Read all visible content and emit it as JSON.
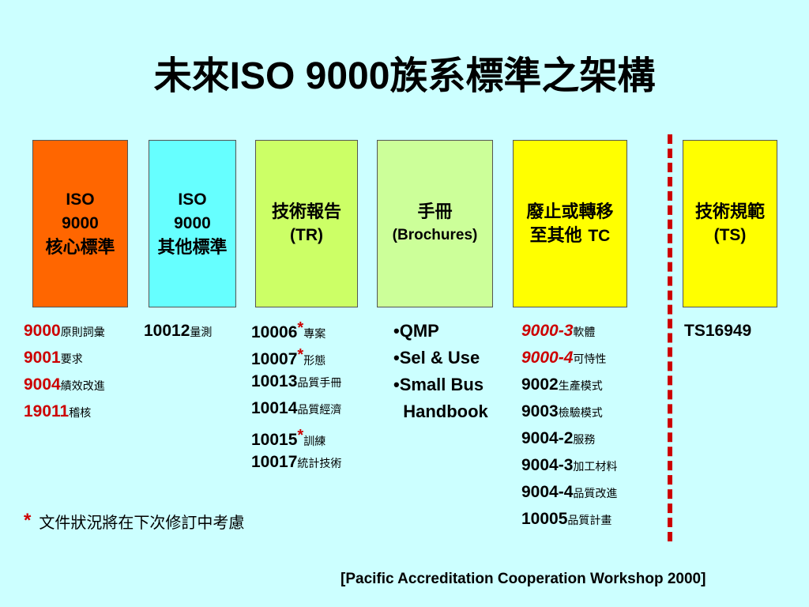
{
  "title": {
    "cjk_before": "未來",
    "latin": "ISO 9000",
    "cjk_after": "族系標準之架構"
  },
  "boxes": [
    {
      "line1": "ISO",
      "line2": "9000",
      "line3": "核心標準",
      "color": "#ff6600"
    },
    {
      "line1": "ISO",
      "line2": "9000",
      "line3": "其他標準",
      "color": "#66ffff"
    },
    {
      "line1": "技術報告",
      "line2": "(TR)",
      "color": "#ccff66"
    },
    {
      "line1": "手冊",
      "line2": "(Brochures)",
      "color": "#ccff99"
    },
    {
      "line1": "廢止或轉移",
      "line2a": "至其他 ",
      "line2b": "TC",
      "color": "#ffff00"
    },
    {
      "line1": "技術規範",
      "line2": "(TS)",
      "color": "#ffff00"
    }
  ],
  "col1": [
    {
      "num": "9000",
      "desc": "原則詞彙"
    },
    {
      "num": "9001",
      "desc": "要求"
    },
    {
      "num": "9004",
      "desc": "績效改進"
    },
    {
      "num": "19011",
      "desc": "稽核"
    }
  ],
  "col2": [
    {
      "num": "10012",
      "desc": "量測"
    }
  ],
  "col3": [
    {
      "num": "10006",
      "star": "*",
      "desc": "專案"
    },
    {
      "num": "10007",
      "star": "*",
      "desc": "形態"
    },
    {
      "num": "10013",
      "desc": "品質手冊"
    },
    {
      "num": "10014",
      "desc": "品質經濟"
    },
    {
      "num": "10015",
      "star": "*",
      "desc": "訓練"
    },
    {
      "num": "10017",
      "desc": "統計技術"
    }
  ],
  "col4": [
    {
      "text": "•QMP"
    },
    {
      "text": "•Sel & Use"
    },
    {
      "text": "•Small Bus"
    },
    {
      "text": "  Handbook"
    }
  ],
  "col5": [
    {
      "num": "9000-3",
      "desc": "軟體"
    },
    {
      "num": "9000-4",
      "desc": "可恃性"
    },
    {
      "num": "9002",
      "desc": "生產模式"
    },
    {
      "num": "9003",
      "desc": "檢驗模式"
    },
    {
      "num": "9004-2",
      "desc": "服務"
    },
    {
      "num": "9004-3",
      "desc": "加工材料"
    },
    {
      "num": "9004-4",
      "desc": "品質改進"
    },
    {
      "num": "10005",
      "desc": "品質計畫"
    }
  ],
  "col6": [
    {
      "num": "TS16949"
    }
  ],
  "note": {
    "star": "*",
    "text": "文件狀況將在下次修訂中考慮"
  },
  "footer": "[Pacific Accreditation Cooperation Workshop  2000]",
  "colors": {
    "background": "#ccffff",
    "accent_red": "#cc0000"
  }
}
